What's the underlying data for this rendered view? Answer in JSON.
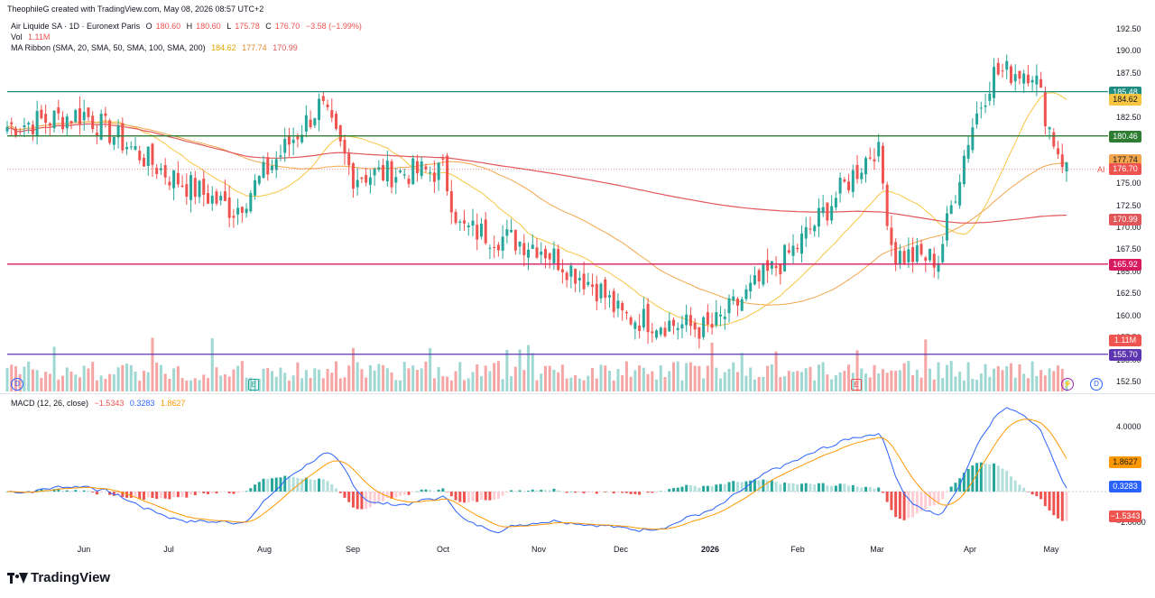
{
  "header": {
    "created_by": "TheophileG created with TradingView.com, May 08, 2026 08:57 UTC+2"
  },
  "legend": {
    "symbol": "Air Liquide SA · 1D · Euronext Paris",
    "ohlc": {
      "o_label": "O",
      "o": "180.60",
      "h_label": "H",
      "h": "180.60",
      "l_label": "L",
      "l": "175.78",
      "c_label": "C",
      "c": "176.70",
      "chg": "−3.58 (−1.99%)"
    },
    "vol_label": "Vol",
    "vol_value": "1.11M",
    "ma_label": "MA Ribbon (SMA, 20, SMA, 50, SMA, 100, SMA, 200)",
    "ma_values": [
      "184.62",
      "177.74",
      "170.99"
    ],
    "macd_label": "MACD (12, 26, close)",
    "macd_values": [
      "−1.5343",
      "0.3283",
      "1.8627"
    ]
  },
  "colors": {
    "up": "#26a69a",
    "down": "#ef5350",
    "ma20": "#f7c541",
    "ma100": "#f2a54a",
    "ma200": "#e15759",
    "green_line": "#2e7d32",
    "teal_line": "#1e8c7e",
    "pink_line": "#d81b60",
    "purple_line": "#5e35b1",
    "macd": "#2962ff",
    "signal": "#ff9800"
  },
  "price_axis": [
    "192.50",
    "190.00",
    "187.50",
    "185.00",
    "182.50",
    "180.00",
    "177.50",
    "175.00",
    "172.50",
    "170.00",
    "167.50",
    "165.00",
    "162.50",
    "160.00",
    "157.50",
    "155.00",
    "152.50"
  ],
  "macd_axis": [
    "4.0000",
    "−2.0000"
  ],
  "time_axis": [
    {
      "label": "Jun",
      "bold": false
    },
    {
      "label": "Jul",
      "bold": false
    },
    {
      "label": "Aug",
      "bold": false
    },
    {
      "label": "Sep",
      "bold": false
    },
    {
      "label": "Oct",
      "bold": false
    },
    {
      "label": "Nov",
      "bold": false
    },
    {
      "label": "Dec",
      "bold": false
    },
    {
      "label": "2026",
      "bold": true
    },
    {
      "label": "Feb",
      "bold": false
    },
    {
      "label": "Mar",
      "bold": false
    },
    {
      "label": "Apr",
      "bold": false
    },
    {
      "label": "May",
      "bold": false
    }
  ],
  "price_tags": [
    {
      "text": "185.48",
      "color": "#1e8c7e"
    },
    {
      "text": "184.62",
      "color": "#f7c541",
      "dark": true
    },
    {
      "text": "180.46",
      "color": "#2e7d32"
    },
    {
      "text": "177.74",
      "color": "#f2a54a",
      "dark": true
    },
    {
      "text": "176.70",
      "color": "#ef5350"
    },
    {
      "text": "170.99",
      "color": "#e15759"
    },
    {
      "text": "165.92",
      "color": "#d81b60"
    },
    {
      "text": "1.11M",
      "color": "#ef5350"
    },
    {
      "text": "155.70",
      "color": "#5e35b1"
    }
  ],
  "ai_badge": "AI",
  "macd_tags": [
    {
      "text": "1.8627",
      "color": "#ff9800",
      "dark": true
    },
    {
      "text": "0.3283",
      "color": "#2962ff"
    },
    {
      "text": "−1.5343",
      "color": "#ef5350"
    }
  ],
  "markers": {
    "d": "D",
    "e": "E",
    "flash": "⚡"
  },
  "chart_data": {
    "type": "candlestick",
    "title": "Air Liquide SA · 1D · Euronext Paris",
    "horizontal_lines": [
      185.48,
      180.46,
      165.92,
      155.7
    ],
    "price_range": [
      152.5,
      192.5
    ],
    "series_anchor": [
      {
        "date": "2025-05",
        "close": 181.5
      },
      {
        "date": "2025-06",
        "close": 183.0
      },
      {
        "date": "2025-07",
        "close": 176.0
      },
      {
        "date": "2025-08",
        "close": 172.0
      },
      {
        "date": "2025-08-22",
        "close": 184.0
      },
      {
        "date": "2025-09",
        "close": 176.0
      },
      {
        "date": "2025-10",
        "close": 176.5
      },
      {
        "date": "2025-10-15",
        "close": 170.0
      },
      {
        "date": "2025-11",
        "close": 168.0
      },
      {
        "date": "2025-11-25",
        "close": 163.0
      },
      {
        "date": "2025-12",
        "close": 160.0
      },
      {
        "date": "2026-01",
        "close": 158.5
      },
      {
        "date": "2026-02",
        "close": 168.0
      },
      {
        "date": "2026-02-28",
        "close": 179.5
      },
      {
        "date": "2026-03",
        "close": 167.0
      },
      {
        "date": "2026-03-20",
        "close": 166.5
      },
      {
        "date": "2026-04",
        "close": 181.0
      },
      {
        "date": "2026-04-10",
        "close": 187.5
      },
      {
        "date": "2026-04-25",
        "close": 188.0
      },
      {
        "date": "2026-05",
        "close": 180.6
      },
      {
        "date": "2026-05-08",
        "close": 176.7
      }
    ],
    "macd_range": [
      -3,
      5.5
    ]
  }
}
